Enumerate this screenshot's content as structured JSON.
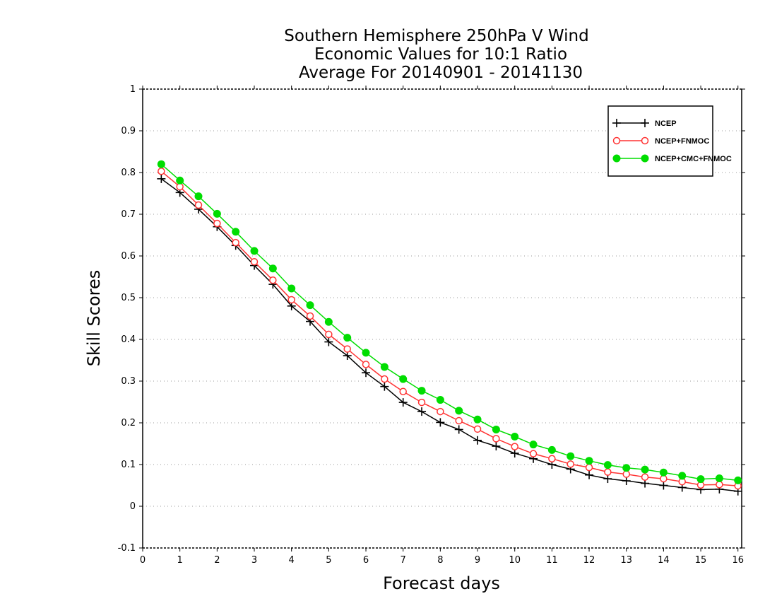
{
  "chart_data": {
    "type": "line",
    "title": [
      "Southern Hemisphere 250hPa V Wind",
      "Economic Values for 10:1 Ratio",
      "Average For 20140901 - 20141130"
    ],
    "xlabel": "Forecast days",
    "ylabel": "Skill Scores",
    "xlim": [
      0,
      16.1
    ],
    "ylim": [
      -0.1,
      1
    ],
    "xticks": [
      "0",
      "1",
      "2",
      "3",
      "4",
      "5",
      "6",
      "7",
      "8",
      "9",
      "10",
      "11",
      "12",
      "13",
      "14",
      "15",
      "16"
    ],
    "yticks": [
      "-0.1",
      "0",
      "0.1",
      "0.2",
      "0.3",
      "0.4",
      "0.5",
      "0.6",
      "0.7",
      "0.8",
      "0.9",
      "1"
    ],
    "grid": "horizontal dotted",
    "legend_position": "top-right",
    "x": [
      0.5,
      1,
      1.5,
      2,
      2.5,
      3,
      3.5,
      4,
      4.5,
      5,
      5.5,
      6,
      6.5,
      7,
      7.5,
      8,
      8.5,
      9,
      9.5,
      10,
      10.5,
      11,
      11.5,
      12,
      12.5,
      13,
      13.5,
      14,
      14.5,
      15,
      15.5,
      16
    ],
    "series": [
      {
        "name": "NCEP",
        "color": "#000000",
        "marker": "plus",
        "values": [
          0.785,
          0.752,
          0.712,
          0.67,
          0.625,
          0.577,
          0.532,
          0.48,
          0.443,
          0.394,
          0.361,
          0.32,
          0.287,
          0.249,
          0.227,
          0.201,
          0.184,
          0.158,
          0.144,
          0.127,
          0.114,
          0.1,
          0.089,
          0.075,
          0.066,
          0.061,
          0.055,
          0.05,
          0.045,
          0.04,
          0.041,
          0.036
        ]
      },
      {
        "name": "NCEP+FNMOC",
        "color": "#ff3333",
        "marker": "open-circle",
        "values": [
          0.803,
          0.766,
          0.722,
          0.678,
          0.632,
          0.586,
          0.542,
          0.495,
          0.456,
          0.412,
          0.377,
          0.34,
          0.305,
          0.275,
          0.249,
          0.227,
          0.205,
          0.185,
          0.162,
          0.143,
          0.126,
          0.114,
          0.101,
          0.093,
          0.082,
          0.077,
          0.07,
          0.066,
          0.059,
          0.051,
          0.052,
          0.049
        ]
      },
      {
        "name": "NCEP+CMC+FNMOC",
        "color": "#00dd00",
        "marker": "filled-circle",
        "values": [
          0.82,
          0.781,
          0.743,
          0.701,
          0.658,
          0.612,
          0.57,
          0.522,
          0.482,
          0.442,
          0.404,
          0.368,
          0.334,
          0.305,
          0.277,
          0.255,
          0.229,
          0.208,
          0.184,
          0.167,
          0.148,
          0.135,
          0.12,
          0.109,
          0.099,
          0.092,
          0.088,
          0.081,
          0.073,
          0.065,
          0.067,
          0.062
        ]
      }
    ]
  }
}
